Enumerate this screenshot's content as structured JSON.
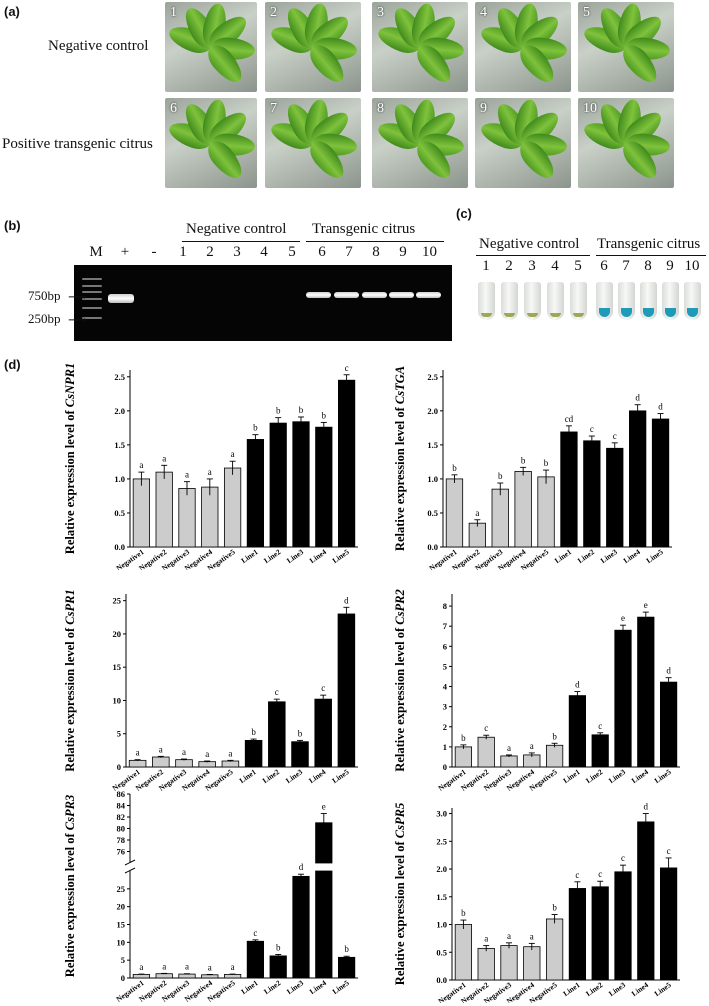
{
  "panel_a": {
    "label": "(a)",
    "row1_label": "Negative control",
    "row2_label": "Positive transgenic citrus",
    "photo_numbers": [
      "1",
      "2",
      "3",
      "4",
      "5",
      "6",
      "7",
      "8",
      "9",
      "10"
    ]
  },
  "panel_b": {
    "label": "(b)",
    "lane_labels": [
      "M",
      "+",
      "-",
      "1",
      "2",
      "3",
      "4",
      "5",
      "6",
      "7",
      "8",
      "9",
      "10"
    ],
    "group_negative": "Negative control",
    "group_transgenic": "Transgenic citrus",
    "marker_750": "750bp",
    "marker_250": "250bp"
  },
  "panel_c": {
    "label": "(c)",
    "group_negative": "Negative control",
    "group_transgenic": "Transgenic citrus",
    "tube_numbers": [
      "1",
      "2",
      "3",
      "4",
      "5",
      "6",
      "7",
      "8",
      "9",
      "10"
    ],
    "negative_color": "#8f9a3a",
    "gus_color": "#1f9bb8"
  },
  "panel_d": {
    "label": "(d)"
  },
  "chart_data": [
    {
      "type": "bar",
      "gene": "CsNPR1",
      "ylabel_prefix": "Relative expression level of ",
      "categories": [
        "Negative1",
        "Negative2",
        "Negative3",
        "Negative4",
        "Negative5",
        "Line1",
        "Line2",
        "Line3",
        "Line4",
        "Line5"
      ],
      "values": [
        1.0,
        1.1,
        0.86,
        0.88,
        1.16,
        1.58,
        1.82,
        1.84,
        1.76,
        2.45
      ],
      "errors": [
        0.1,
        0.1,
        0.1,
        0.12,
        0.1,
        0.07,
        0.08,
        0.07,
        0.07,
        0.08
      ],
      "letters": [
        "a",
        "a",
        "a",
        "a",
        "a",
        "b",
        "b",
        "b",
        "b",
        "c"
      ],
      "ylim": [
        0,
        2.6
      ],
      "yticks": [
        0.0,
        0.5,
        1.0,
        1.5,
        2.0,
        2.5
      ],
      "tick_labels": [
        "0.0",
        "0.5",
        "1.0",
        "1.5",
        "2.0",
        "2.5"
      ]
    },
    {
      "type": "bar",
      "gene": "CsTGA",
      "ylabel_prefix": "Relative expression level of ",
      "categories": [
        "Negative1",
        "Negative2",
        "Negative3",
        "Negative4",
        "Negative5",
        "Line1",
        "Line2",
        "Line3",
        "Line4",
        "Line5"
      ],
      "values": [
        1.0,
        0.35,
        0.85,
        1.11,
        1.03,
        1.69,
        1.56,
        1.45,
        2.0,
        1.88
      ],
      "errors": [
        0.06,
        0.05,
        0.09,
        0.06,
        0.1,
        0.09,
        0.07,
        0.08,
        0.09,
        0.08
      ],
      "letters": [
        "b",
        "a",
        "b",
        "b",
        "b",
        "cd",
        "c",
        "c",
        "d",
        "d"
      ],
      "ylim": [
        0,
        2.6
      ],
      "yticks": [
        0.0,
        0.5,
        1.0,
        1.5,
        2.0,
        2.5
      ],
      "tick_labels": [
        "0.0",
        "0.5",
        "1.0",
        "1.5",
        "2.0",
        "2.5"
      ]
    },
    {
      "type": "bar",
      "gene": "CsPR1",
      "ylabel_prefix": "Relative expression level of ",
      "categories": [
        "Negative1",
        "Negative2",
        "Negative3",
        "Negative4",
        "Negative5",
        "Line1",
        "Line2",
        "Line3",
        "Line4",
        "Line5"
      ],
      "values": [
        1.0,
        1.5,
        1.1,
        0.8,
        0.9,
        4.0,
        9.8,
        3.8,
        10.2,
        23.0
      ],
      "errors": [
        0.1,
        0.1,
        0.1,
        0.1,
        0.1,
        0.2,
        0.4,
        0.2,
        0.6,
        1.0
      ],
      "letters": [
        "a",
        "a",
        "a",
        "a",
        "a",
        "b",
        "c",
        "b",
        "c",
        "d"
      ],
      "ylim": [
        0,
        26
      ],
      "yticks": [
        0,
        5,
        10,
        15,
        20,
        25
      ],
      "tick_labels": [
        "0",
        "5",
        "10",
        "15",
        "20",
        "25"
      ]
    },
    {
      "type": "bar",
      "gene": "CsPR2",
      "ylabel_prefix": "Relative expression level of ",
      "categories": [
        "Negative1",
        "Negative2",
        "Negative3",
        "Negative4",
        "Negative5",
        "Line1",
        "Line2",
        "Line3",
        "Line4",
        "Line5"
      ],
      "values": [
        1.0,
        1.48,
        0.55,
        0.6,
        1.08,
        3.55,
        1.6,
        6.8,
        7.45,
        4.22
      ],
      "errors": [
        0.1,
        0.1,
        0.05,
        0.1,
        0.1,
        0.2,
        0.1,
        0.25,
        0.25,
        0.22
      ],
      "letters": [
        "b",
        "c",
        "a",
        "a",
        "b",
        "d",
        "c",
        "e",
        "e",
        "d"
      ],
      "ylim": [
        0,
        8.6
      ],
      "yticks": [
        0,
        1,
        2,
        3,
        4,
        5,
        6,
        7,
        8
      ],
      "tick_labels": [
        "0",
        "1",
        "2",
        "3",
        "4",
        "5",
        "6",
        "7",
        "8"
      ]
    },
    {
      "type": "bar",
      "gene": "CsPR3",
      "ylabel_prefix": "Relative expression level of ",
      "categories": [
        "Negative1",
        "Negative2",
        "Negative3",
        "Negative4",
        "Negative5",
        "Line1",
        "Line2",
        "Line3",
        "Line4",
        "Line5"
      ],
      "values": [
        1.0,
        1.2,
        1.1,
        0.9,
        1.0,
        10.3,
        6.2,
        28.5,
        81.0,
        5.8
      ],
      "errors": [
        0.1,
        0.1,
        0.1,
        0.1,
        0.1,
        0.4,
        0.4,
        0.6,
        1.6,
        0.3
      ],
      "letters": [
        "a",
        "a",
        "a",
        "a",
        "a",
        "c",
        "b",
        "d",
        "e",
        "b"
      ],
      "broken_axis": true,
      "lower_range": [
        0,
        30
      ],
      "upper_range": [
        74,
        86
      ],
      "lower_ticks": [
        0,
        5,
        10,
        15,
        20,
        25
      ],
      "upper_ticks": [
        76,
        78,
        80,
        82,
        84,
        86
      ],
      "lower_tick_labels": [
        "0",
        "5",
        "10",
        "15",
        "20",
        "25"
      ],
      "upper_tick_labels": [
        "76",
        "78",
        "80",
        "82",
        "84",
        "86"
      ]
    },
    {
      "type": "bar",
      "gene": "CsPR5",
      "ylabel_prefix": "Relative expression level of ",
      "categories": [
        "Negative1",
        "Negative2",
        "Negative3",
        "Negative4",
        "Negative5",
        "Line1",
        "Line2",
        "Line3",
        "Line4",
        "Line5"
      ],
      "values": [
        1.0,
        0.57,
        0.62,
        0.6,
        1.1,
        1.65,
        1.68,
        1.95,
        2.85,
        2.02
      ],
      "errors": [
        0.08,
        0.05,
        0.05,
        0.06,
        0.08,
        0.12,
        0.1,
        0.12,
        0.15,
        0.18
      ],
      "letters": [
        "b",
        "a",
        "a",
        "a",
        "b",
        "c",
        "c",
        "c",
        "d",
        "c"
      ],
      "ylim": [
        0,
        3.1
      ],
      "yticks": [
        0.0,
        0.5,
        1.0,
        1.5,
        2.0,
        2.5,
        3.0
      ],
      "tick_labels": [
        "0.0",
        "0.5",
        "1.0",
        "1.5",
        "2.0",
        "2.5",
        "3.0"
      ]
    }
  ]
}
